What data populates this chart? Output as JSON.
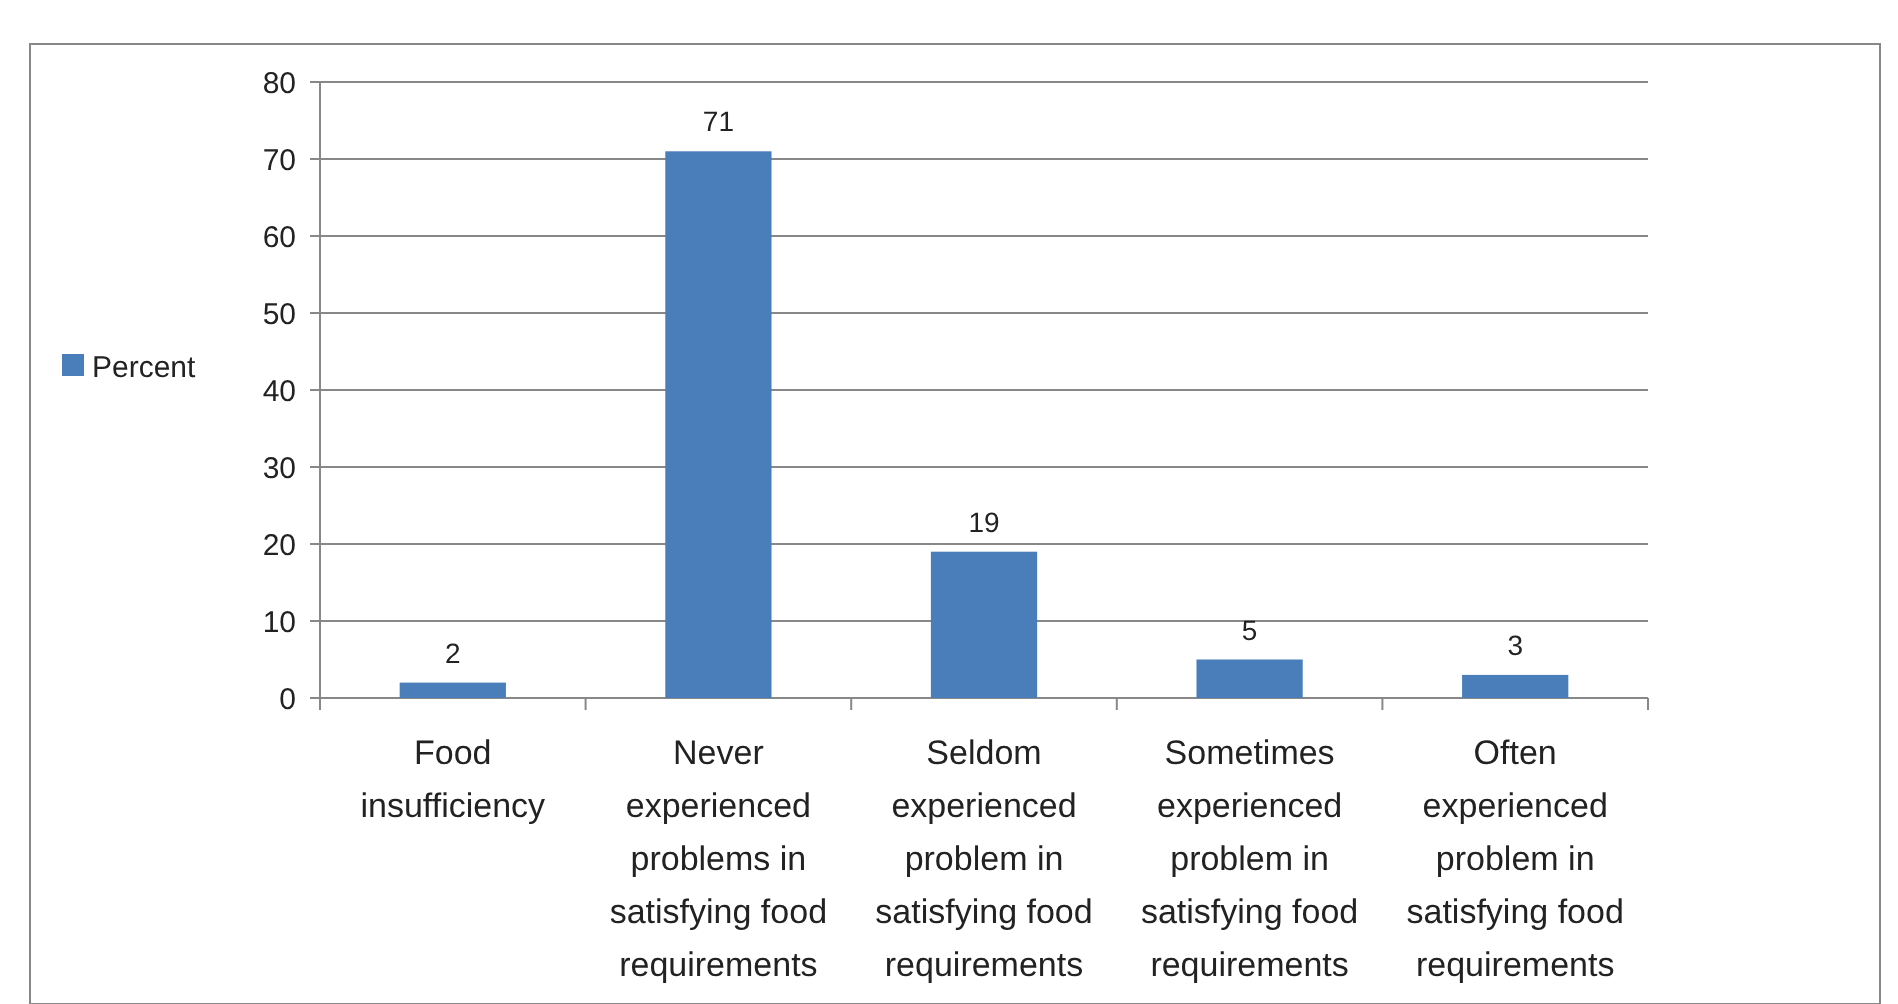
{
  "chart_data": {
    "type": "bar",
    "categories": [
      "Food insufficiency",
      "Never experienced problems in satisfying food requirements",
      "Seldom experienced problem in satisfying food requirements",
      "Sometimes experienced problem in satisfying food requirements",
      "Often experienced problem in satisfying food requirements"
    ],
    "series": [
      {
        "name": "Percent",
        "color": "#4a7ebb",
        "values": [
          2,
          71,
          19,
          5,
          3
        ]
      }
    ],
    "ylim": [
      0,
      80
    ],
    "yticks": [
      0,
      10,
      20,
      30,
      40,
      50,
      60,
      70,
      80
    ],
    "grid": "y",
    "legend": "left",
    "data_labels": true
  }
}
